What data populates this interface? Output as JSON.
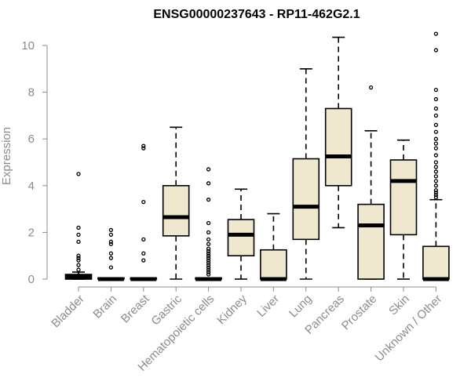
{
  "chart_data": {
    "type": "boxplot",
    "title": "ENSG00000237643 - RP11-462G2.1",
    "ylabel": "Expression",
    "xlabel": "",
    "ylim": [
      0,
      10.5
    ],
    "yticks": [
      0,
      2,
      4,
      6,
      8,
      10
    ],
    "box_color": "#efe8cf",
    "grid": false,
    "categories": [
      "Bladder",
      "Brain",
      "Breast",
      "Gastric",
      "Hematopoietic cells",
      "Kidney",
      "Liver",
      "Lung",
      "Pancreas",
      "Prostate",
      "Skin",
      "Unknown / Other"
    ],
    "boxes": [
      {
        "min": 0,
        "q1": 0,
        "median": 0.1,
        "q3": 0.2,
        "max": 0.3,
        "outliers": [
          0.4,
          0.6,
          0.8,
          0.9,
          1.0,
          1.6,
          1.9,
          2.2,
          4.5
        ]
      },
      {
        "min": 0,
        "q1": 0,
        "median": 0,
        "q3": 0.05,
        "max": 0.05,
        "outliers": [
          0.5,
          0.9,
          1.1,
          1.5,
          1.6,
          1.9,
          2.1
        ]
      },
      {
        "min": 0,
        "q1": 0,
        "median": 0,
        "q3": 0.05,
        "max": 0.05,
        "outliers": [
          0.8,
          1.1,
          1.7,
          3.3,
          5.6,
          5.7
        ]
      },
      {
        "min": 0,
        "q1": 1.85,
        "median": 2.65,
        "q3": 4.0,
        "max": 6.5,
        "outliers": []
      },
      {
        "min": 0,
        "q1": 0,
        "median": 0,
        "q3": 0.05,
        "max": 0.05,
        "outliers": [
          0.2,
          0.3,
          0.4,
          0.5,
          0.6,
          0.7,
          0.8,
          0.9,
          1.0,
          1.1,
          1.2,
          1.3,
          1.5,
          1.7,
          2.0,
          2.4,
          3.4,
          4.1,
          4.7
        ]
      },
      {
        "min": 0,
        "q1": 1.0,
        "median": 1.9,
        "q3": 2.55,
        "max": 3.85,
        "outliers": []
      },
      {
        "min": 0,
        "q1": 0,
        "median": 0,
        "q3": 1.25,
        "max": 2.8,
        "outliers": []
      },
      {
        "min": 0,
        "q1": 1.7,
        "median": 3.1,
        "q3": 5.15,
        "max": 9.0,
        "outliers": []
      },
      {
        "min": 2.2,
        "q1": 4.0,
        "median": 5.25,
        "q3": 7.3,
        "max": 10.35,
        "outliers": []
      },
      {
        "min": 0,
        "q1": 0,
        "median": 2.3,
        "q3": 3.2,
        "max": 6.35,
        "outliers": [
          8.2
        ]
      },
      {
        "min": 0,
        "q1": 1.9,
        "median": 4.2,
        "q3": 5.1,
        "max": 5.95,
        "outliers": []
      },
      {
        "min": 0,
        "q1": 0,
        "median": 0,
        "q3": 1.4,
        "max": 3.4,
        "outliers": [
          3.5,
          3.6,
          3.7,
          3.8,
          4.0,
          4.2,
          4.4,
          4.6,
          4.8,
          5.0,
          5.3,
          5.6,
          5.8,
          6.0,
          6.3,
          6.6,
          7.0,
          7.3,
          7.7,
          8.1,
          9.8,
          10.5
        ]
      }
    ]
  }
}
